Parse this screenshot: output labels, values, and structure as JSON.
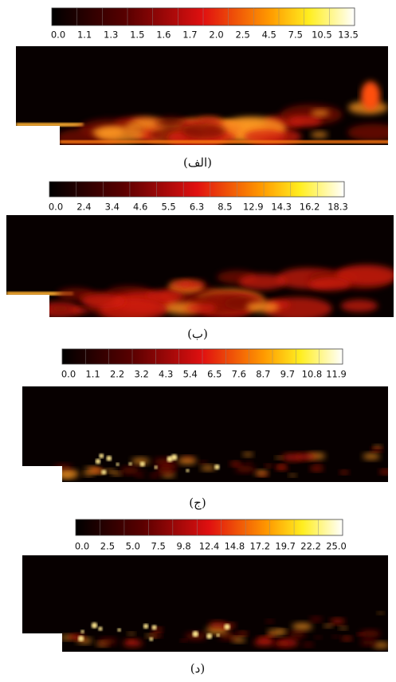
{
  "panels": [
    {
      "colorbar": {
        "ticks": [
          "0.0",
          "1.1",
          "1.3",
          "1.5",
          "1.6",
          "1.7",
          "2.0",
          "2.5",
          "4.5",
          "7.5",
          "10.5",
          "13.5"
        ]
      },
      "caption": "(الف)"
    },
    {
      "colorbar": {
        "ticks": [
          "0.0",
          "2.4",
          "3.4",
          "4.6",
          "5.5",
          "6.3",
          "8.5",
          "12.9",
          "14.3",
          "16.2",
          "18.3"
        ]
      },
      "caption": "(ب)"
    },
    {
      "colorbar": {
        "ticks": [
          "0.0",
          "1.1",
          "2.2",
          "3.2",
          "4.3",
          "5.4",
          "6.5",
          "7.6",
          "8.7",
          "9.7",
          "10.8",
          "11.9"
        ]
      },
      "caption": "(ج)"
    },
    {
      "colorbar": {
        "ticks": [
          "0.0",
          "2.5",
          "5.0",
          "7.5",
          "9.8",
          "12.4",
          "14.8",
          "17.2",
          "19.7",
          "22.2",
          "25.0"
        ]
      },
      "caption": "(د)"
    }
  ]
}
